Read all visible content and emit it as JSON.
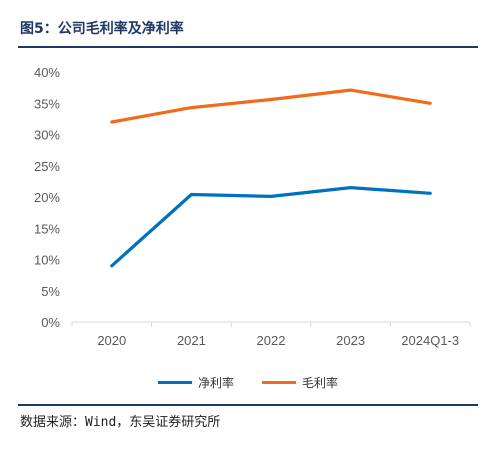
{
  "header": {
    "title": "图5：公司毛利率及净利率"
  },
  "source": "数据来源：Wind，东吴证券研究所",
  "colors": {
    "net": "#0070c0",
    "gross": "#f26b1d",
    "axis": "#d9d9d9",
    "text": "#595959",
    "title": "#1f3864"
  },
  "chart_data": {
    "type": "line",
    "title": "公司毛利率及净利率",
    "categories": [
      "2020",
      "2021",
      "2022",
      "2023",
      "2024Q1-3"
    ],
    "series": [
      {
        "name": "净利率",
        "values": [
          9.0,
          20.4,
          20.1,
          21.5,
          20.6
        ]
      },
      {
        "name": "毛利率",
        "values": [
          32.0,
          34.3,
          35.6,
          37.1,
          35.0
        ]
      }
    ],
    "ylim": [
      0,
      40
    ],
    "yticks": [
      "0%",
      "5%",
      "10%",
      "15%",
      "20%",
      "25%",
      "30%",
      "35%",
      "40%"
    ],
    "grid": false,
    "legend": "bottom"
  }
}
